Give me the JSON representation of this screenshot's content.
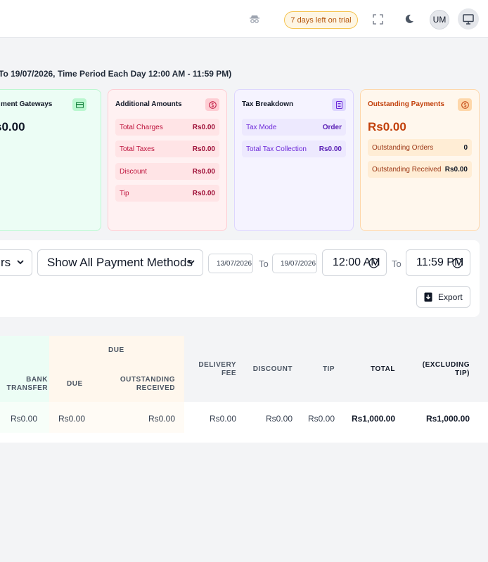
{
  "topbar": {
    "trial_label": "7 days left on trial",
    "avatar_initials": "UM",
    "icons": [
      "incognito-icon",
      "fullscreen-icon",
      "moon-icon",
      "monitor-icon"
    ]
  },
  "period_text": "To 19/07/2026, Time Period Each Day 12:00 AM - 11:59 PM)",
  "cards": {
    "payment_gateways": {
      "title": "ment Gateways",
      "amount": "s0.00",
      "icon": "card-icon"
    },
    "additional_amounts": {
      "title": "Additional Amounts",
      "icon": "dollar-icon",
      "rows": [
        {
          "label": "Total Charges",
          "value": "Rs0.00"
        },
        {
          "label": "Total Taxes",
          "value": "Rs0.00"
        },
        {
          "label": "Discount",
          "value": "Rs0.00"
        },
        {
          "label": "Tip",
          "value": "Rs0.00"
        }
      ]
    },
    "tax_breakdown": {
      "title": "Tax Breakdown",
      "icon": "document-icon",
      "rows": [
        {
          "label": "Tax Mode",
          "value": "Order"
        },
        {
          "label": "Total Tax Collection",
          "value": "Rs0.00"
        }
      ]
    },
    "outstanding_payments": {
      "title": "Outstanding Payments",
      "icon": "dollar-icon",
      "amount": "Rs0.00",
      "rows": [
        {
          "label": "Outstanding Orders",
          "value": "0"
        },
        {
          "label": "Outstanding Received",
          "value": "Rs0.00"
        }
      ]
    }
  },
  "filters": {
    "first_select": "rs",
    "payment_methods_select": "Show All Payment Methods",
    "start_date": "13/07/2026",
    "end_date": "19/07/2026",
    "to_label": "To",
    "start_time": "12:00 AM",
    "end_time": "11:59 PM",
    "export_label": "Export"
  },
  "table": {
    "group_due": "DUE",
    "headers": {
      "bank_transfer_1": "BANK",
      "bank_transfer_2": "TRANSFER",
      "due": "DUE",
      "outstanding_1": "OUTSTANDING",
      "outstanding_2": "RECEIVED",
      "delivery_1": "DELIVERY",
      "delivery_2": "FEE",
      "discount": "DISCOUNT",
      "tip": "TIP",
      "total": "TOTAL",
      "excl_1": "(EXCLUDING",
      "excl_2": "TIP)"
    },
    "row": {
      "bank_transfer": "Rs0.00",
      "due": "Rs0.00",
      "outstanding_received": "Rs0.00",
      "delivery_fee": "Rs0.00",
      "discount": "Rs0.00",
      "tip": "Rs0.00",
      "total": "Rs1,000.00",
      "total_excluding_tip": "Rs1,000.00"
    }
  }
}
